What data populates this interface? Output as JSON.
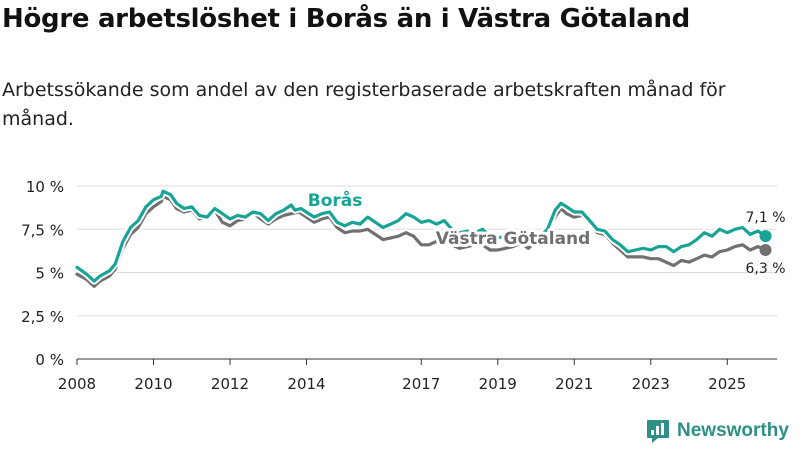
{
  "header": {
    "title": "Högre arbetslöshet i Borås än i Västra Götaland",
    "subtitle": "Arbetssökande som andel av den registerbaserade arbetskraften månad för månad."
  },
  "brand": {
    "name": "Newsworthy"
  },
  "chart_data": {
    "type": "line",
    "title": "Högre arbetslöshet i Borås än i Västra Götaland",
    "xlabel": "",
    "ylabel": "",
    "xlim": [
      2008,
      2026.3
    ],
    "ylim": [
      0,
      10
    ],
    "y_ticks": [
      0,
      2.5,
      5,
      7.5,
      10
    ],
    "y_tick_labels": [
      "0 %",
      "2,5 %",
      "5 %",
      "7,5 %",
      "10 %"
    ],
    "x_ticks": [
      2008,
      2010,
      2012,
      2014,
      2017,
      2019,
      2021,
      2023,
      2025
    ],
    "x_tick_labels": [
      "2008",
      "2010",
      "2012",
      "2014",
      "2017",
      "2019",
      "2021",
      "2023",
      "2025"
    ],
    "grid": true,
    "series": [
      {
        "name": "Borås",
        "color": "#17a396",
        "end_label": "7,1 %",
        "points": [
          [
            2008.0,
            5.3
          ],
          [
            2008.25,
            4.9
          ],
          [
            2008.45,
            4.5
          ],
          [
            2008.6,
            4.8
          ],
          [
            2008.85,
            5.1
          ],
          [
            2009.0,
            5.5
          ],
          [
            2009.2,
            6.8
          ],
          [
            2009.4,
            7.6
          ],
          [
            2009.6,
            8.0
          ],
          [
            2009.8,
            8.8
          ],
          [
            2010.0,
            9.2
          ],
          [
            2010.2,
            9.4
          ],
          [
            2010.25,
            9.7
          ],
          [
            2010.45,
            9.5
          ],
          [
            2010.6,
            9.0
          ],
          [
            2010.8,
            8.7
          ],
          [
            2011.0,
            8.8
          ],
          [
            2011.2,
            8.3
          ],
          [
            2011.4,
            8.2
          ],
          [
            2011.6,
            8.7
          ],
          [
            2011.8,
            8.4
          ],
          [
            2012.0,
            8.1
          ],
          [
            2012.2,
            8.3
          ],
          [
            2012.4,
            8.2
          ],
          [
            2012.6,
            8.5
          ],
          [
            2012.8,
            8.4
          ],
          [
            2013.0,
            8.0
          ],
          [
            2013.2,
            8.4
          ],
          [
            2013.4,
            8.6
          ],
          [
            2013.6,
            8.9
          ],
          [
            2013.7,
            8.6
          ],
          [
            2013.85,
            8.7
          ],
          [
            2014.2,
            8.2
          ],
          [
            2014.4,
            8.4
          ],
          [
            2014.6,
            8.5
          ],
          [
            2014.8,
            7.9
          ],
          [
            2015.0,
            7.7
          ],
          [
            2015.2,
            7.9
          ],
          [
            2015.4,
            7.8
          ],
          [
            2015.6,
            8.2
          ],
          [
            2015.8,
            7.9
          ],
          [
            2016.0,
            7.6
          ],
          [
            2016.2,
            7.8
          ],
          [
            2016.4,
            8.0
          ],
          [
            2016.6,
            8.4
          ],
          [
            2016.8,
            8.2
          ],
          [
            2017.0,
            7.9
          ],
          [
            2017.2,
            8.0
          ],
          [
            2017.4,
            7.8
          ],
          [
            2017.6,
            8.0
          ],
          [
            2017.8,
            7.5
          ],
          [
            2018.0,
            7.3
          ],
          [
            2018.2,
            7.4
          ],
          [
            2018.4,
            7.3
          ],
          [
            2018.6,
            7.5
          ],
          [
            2018.8,
            7.1
          ],
          [
            2019.0,
            7.0
          ],
          [
            2019.2,
            7.1
          ],
          [
            2019.4,
            7.0
          ],
          [
            2019.6,
            7.2
          ],
          [
            2019.8,
            6.9
          ],
          [
            2020.0,
            7.2
          ],
          [
            2020.1,
            7.1
          ],
          [
            2020.3,
            7.5
          ],
          [
            2020.5,
            8.6
          ],
          [
            2020.65,
            9.0
          ],
          [
            2020.8,
            8.8
          ],
          [
            2021.0,
            8.5
          ],
          [
            2021.2,
            8.5
          ],
          [
            2021.4,
            8.0
          ],
          [
            2021.6,
            7.5
          ],
          [
            2021.8,
            7.4
          ],
          [
            2022.0,
            6.9
          ],
          [
            2022.2,
            6.6
          ],
          [
            2022.4,
            6.2
          ],
          [
            2022.6,
            6.3
          ],
          [
            2022.8,
            6.4
          ],
          [
            2023.0,
            6.3
          ],
          [
            2023.2,
            6.5
          ],
          [
            2023.4,
            6.5
          ],
          [
            2023.6,
            6.2
          ],
          [
            2023.8,
            6.5
          ],
          [
            2024.0,
            6.6
          ],
          [
            2024.2,
            6.9
          ],
          [
            2024.4,
            7.3
          ],
          [
            2024.6,
            7.1
          ],
          [
            2024.8,
            7.5
          ],
          [
            2025.0,
            7.3
          ],
          [
            2025.2,
            7.5
          ],
          [
            2025.4,
            7.6
          ],
          [
            2025.6,
            7.2
          ],
          [
            2025.8,
            7.4
          ],
          [
            2026.0,
            7.1
          ]
        ]
      },
      {
        "name": "Västra Götaland",
        "color": "#707070",
        "end_label": "6,3 %",
        "points": [
          [
            2008.0,
            4.9
          ],
          [
            2008.25,
            4.6
          ],
          [
            2008.45,
            4.2
          ],
          [
            2008.6,
            4.5
          ],
          [
            2008.85,
            4.8
          ],
          [
            2009.0,
            5.2
          ],
          [
            2009.2,
            6.4
          ],
          [
            2009.4,
            7.2
          ],
          [
            2009.6,
            7.6
          ],
          [
            2009.8,
            8.4
          ],
          [
            2010.0,
            8.8
          ],
          [
            2010.2,
            9.1
          ],
          [
            2010.25,
            9.4
          ],
          [
            2010.45,
            9.2
          ],
          [
            2010.6,
            8.7
          ],
          [
            2010.8,
            8.5
          ],
          [
            2011.0,
            8.6
          ],
          [
            2011.2,
            8.1
          ],
          [
            2011.4,
            8.2
          ],
          [
            2011.6,
            8.6
          ],
          [
            2011.8,
            7.9
          ],
          [
            2012.0,
            7.7
          ],
          [
            2012.2,
            8.0
          ],
          [
            2012.4,
            8.1
          ],
          [
            2012.6,
            8.5
          ],
          [
            2012.8,
            8.1
          ],
          [
            2013.0,
            7.8
          ],
          [
            2013.2,
            8.1
          ],
          [
            2013.4,
            8.3
          ],
          [
            2013.6,
            8.4
          ],
          [
            2013.8,
            8.5
          ],
          [
            2014.0,
            8.2
          ],
          [
            2014.2,
            7.9
          ],
          [
            2014.4,
            8.1
          ],
          [
            2014.6,
            8.2
          ],
          [
            2014.8,
            7.6
          ],
          [
            2015.0,
            7.3
          ],
          [
            2015.2,
            7.4
          ],
          [
            2015.4,
            7.4
          ],
          [
            2015.6,
            7.5
          ],
          [
            2015.8,
            7.2
          ],
          [
            2016.0,
            6.9
          ],
          [
            2016.2,
            7.0
          ],
          [
            2016.4,
            7.1
          ],
          [
            2016.6,
            7.3
          ],
          [
            2016.8,
            7.1
          ],
          [
            2017.0,
            6.6
          ],
          [
            2017.2,
            6.6
          ],
          [
            2017.4,
            6.8
          ],
          [
            2017.6,
            6.9
          ],
          [
            2017.8,
            6.6
          ],
          [
            2018.0,
            6.4
          ],
          [
            2018.2,
            6.5
          ],
          [
            2018.4,
            6.6
          ],
          [
            2018.6,
            6.6
          ],
          [
            2018.8,
            6.3
          ],
          [
            2019.0,
            6.3
          ],
          [
            2019.2,
            6.4
          ],
          [
            2019.4,
            6.5
          ],
          [
            2019.6,
            6.7
          ],
          [
            2019.8,
            6.4
          ],
          [
            2020.0,
            6.8
          ],
          [
            2020.1,
            7.0
          ],
          [
            2020.3,
            7.5
          ],
          [
            2020.5,
            8.2
          ],
          [
            2020.65,
            8.7
          ],
          [
            2020.8,
            8.4
          ],
          [
            2021.0,
            8.2
          ],
          [
            2021.2,
            8.3
          ],
          [
            2021.4,
            7.9
          ],
          [
            2021.6,
            7.3
          ],
          [
            2021.8,
            7.2
          ],
          [
            2022.0,
            6.7
          ],
          [
            2022.2,
            6.3
          ],
          [
            2022.4,
            5.9
          ],
          [
            2022.6,
            5.9
          ],
          [
            2022.8,
            5.9
          ],
          [
            2023.0,
            5.8
          ],
          [
            2023.2,
            5.8
          ],
          [
            2023.4,
            5.6
          ],
          [
            2023.6,
            5.4
          ],
          [
            2023.8,
            5.7
          ],
          [
            2024.0,
            5.6
          ],
          [
            2024.2,
            5.8
          ],
          [
            2024.4,
            6.0
          ],
          [
            2024.6,
            5.9
          ],
          [
            2024.8,
            6.2
          ],
          [
            2025.0,
            6.3
          ],
          [
            2025.2,
            6.5
          ],
          [
            2025.4,
            6.6
          ],
          [
            2025.6,
            6.3
          ],
          [
            2025.8,
            6.5
          ],
          [
            2026.0,
            6.3
          ]
        ]
      }
    ],
    "annotations": [
      {
        "series": 0,
        "text": "Borås",
        "x": 2013.85,
        "y": 8.6
      },
      {
        "series": 1,
        "text": "Västra Götaland",
        "x": 2019.4,
        "y": 6.7
      }
    ]
  }
}
